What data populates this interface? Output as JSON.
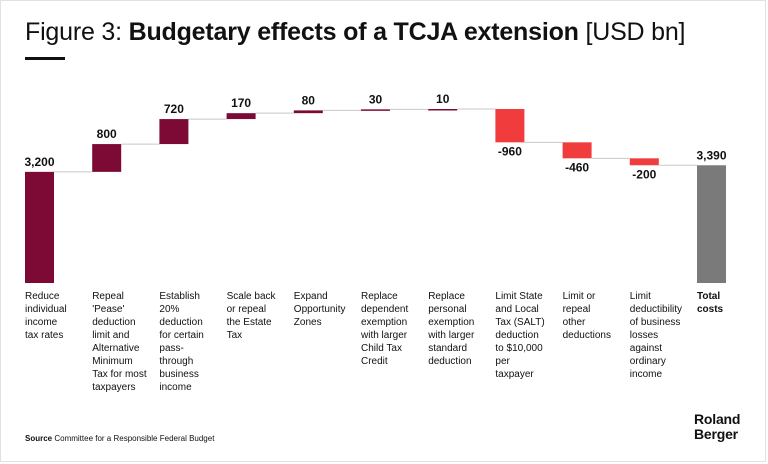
{
  "title": {
    "prefix": "Figure 3: ",
    "main": "Budgetary effects of a TCJA extension",
    "unit": "[USD bn]"
  },
  "chart_data": {
    "type": "waterfall",
    "title": "Figure 3: Budgetary effects of a TCJA extension [USD bn]",
    "unit": "USD bn",
    "categories": [
      "Reduce individual income tax rates",
      "Repeal 'Pease' deduction limit and Alternative Minimum Tax for most taxpayers",
      "Establish 20% deduction for certain pass-through business income",
      "Scale back or repeal the Estate Tax",
      "Expand Opportunity Zones",
      "Replace dependent exemption with larger Child Tax Credit",
      "Replace personal exemption with larger standard deduction",
      "Limit State and Local Tax (SALT) deduction to $10,000 per taxpayer",
      "Limit or repeal other deductions",
      "Limit deductibility of business losses against ordinary income",
      "Total costs"
    ],
    "values": [
      3200,
      800,
      720,
      170,
      80,
      30,
      10,
      -960,
      -460,
      -200,
      3390
    ],
    "value_labels": [
      "3,200",
      "800",
      "720",
      "170",
      "80",
      "30",
      "10",
      "-960",
      "-460",
      "-200",
      "3,390"
    ],
    "kinds": [
      "start",
      "increase",
      "increase",
      "increase",
      "increase",
      "increase",
      "increase",
      "decrease",
      "decrease",
      "decrease",
      "total"
    ],
    "colors": {
      "increase": "#7d0a35",
      "decrease": "#f03c3c",
      "total": "#7a7a7a",
      "connector": "#c8c8c8"
    },
    "ylim": [
      0,
      5010
    ]
  },
  "labels": [
    "Reduce\nindividual\nincome\ntax rates",
    "Repeal\n'Pease'\ndeduction\nlimit and\nAlternative\nMinimum\nTax for most\ntaxpayers",
    "Establish\n20%\ndeduction\nfor certain\npass-\nthrough\nbusiness\nincome",
    "Scale back\nor repeal\nthe Estate\nTax",
    "Expand\nOpportunity\nZones",
    "Replace\ndependent\nexemption\nwith larger\nChild Tax\nCredit",
    "Replace\npersonal\nexemption\nwith larger\nstandard\ndeduction",
    "Limit State\nand Local\nTax (SALT)\ndeduction\nto $10,000\nper\ntaxpayer",
    "Limit or\nrepeal\nother\ndeductions",
    "Limit\ndeductibility\nof business\nlosses\nagainst\nordinary\nincome",
    "Total\ncosts"
  ],
  "source": {
    "label": "Source",
    "text": " Committee for a Responsible Federal Budget"
  },
  "logo": {
    "line1": "Roland",
    "line2": "Berger"
  }
}
